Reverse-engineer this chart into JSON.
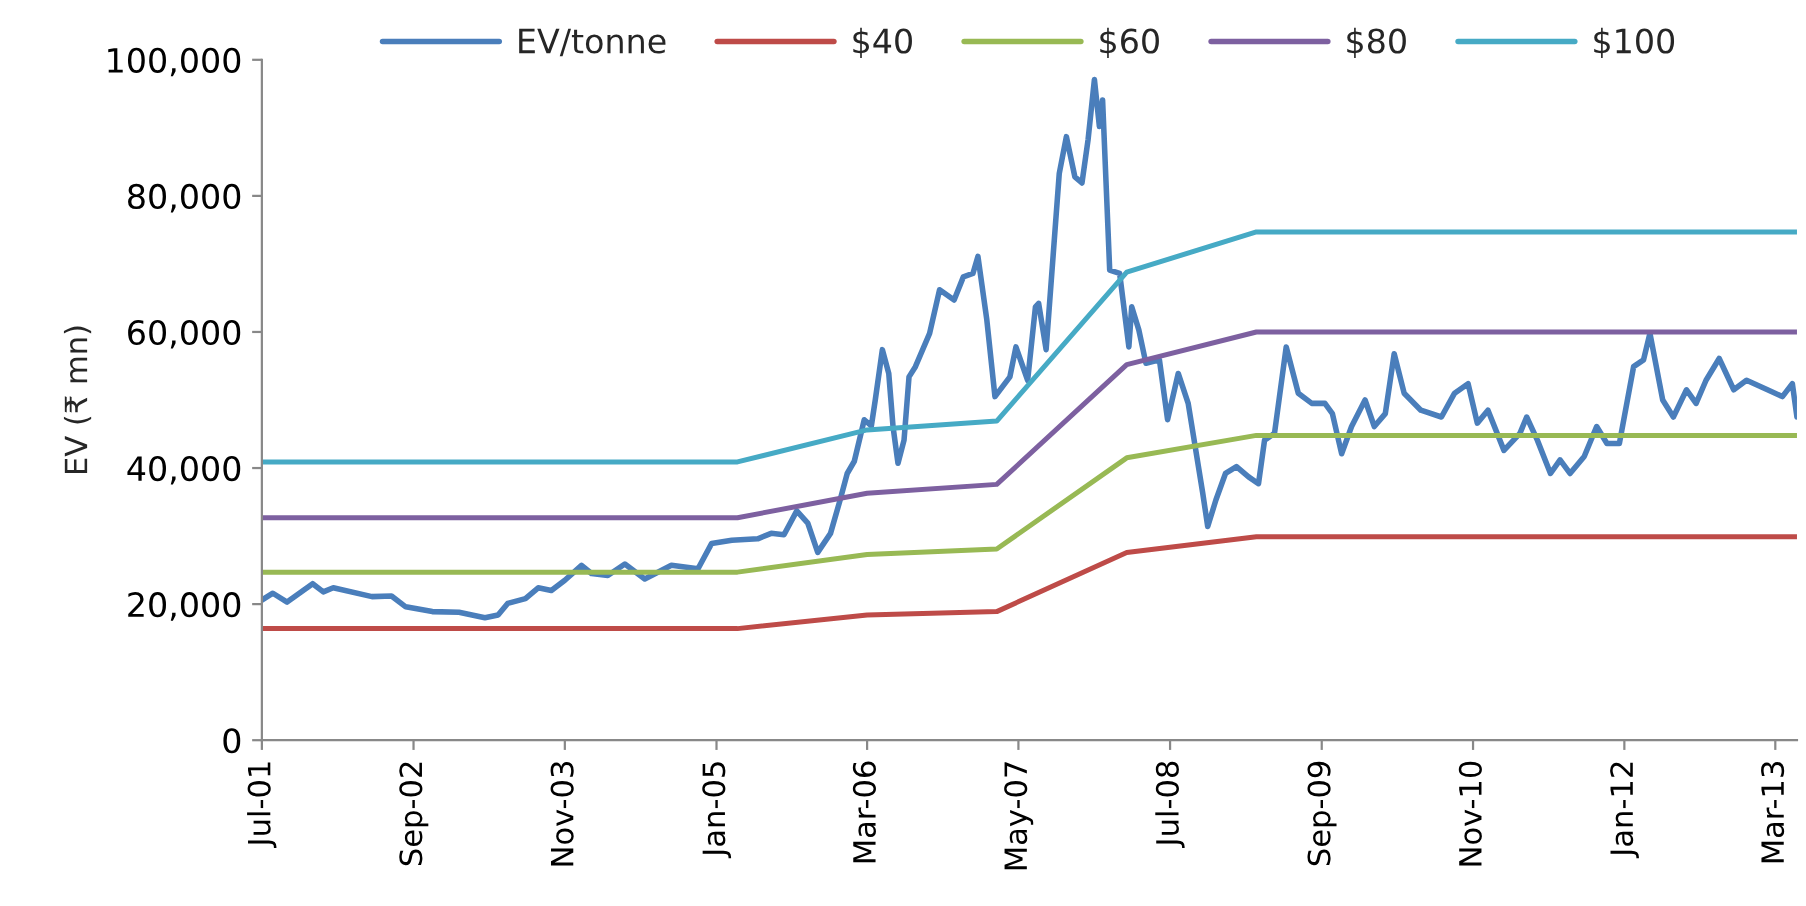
{
  "chart_data": {
    "type": "line",
    "ylabel": "EV (₹ mn)",
    "xlim": [
      "2001-07-01",
      "2013-05-01"
    ],
    "ylim": [
      0,
      100000
    ],
    "xticks": [
      {
        "value": "2001-07-01",
        "label": "Jul-01"
      },
      {
        "value": "2002-09-01",
        "label": "Sep-02"
      },
      {
        "value": "2003-11-01",
        "label": "Nov-03"
      },
      {
        "value": "2005-01-01",
        "label": "Jan-05"
      },
      {
        "value": "2006-03-01",
        "label": "Mar-06"
      },
      {
        "value": "2007-05-01",
        "label": "May-07"
      },
      {
        "value": "2008-07-01",
        "label": "Jul-08"
      },
      {
        "value": "2009-09-01",
        "label": "Sep-09"
      },
      {
        "value": "2010-11-01",
        "label": "Nov-10"
      },
      {
        "value": "2012-01-01",
        "label": "Jan-12"
      },
      {
        "value": "2013-03-01",
        "label": "Mar-13"
      }
    ],
    "yticks": [
      0,
      {
        "value": 20000,
        "label": "20,000"
      },
      {
        "value": 40000,
        "label": "40,000"
      },
      {
        "value": 60000,
        "label": "60,000"
      },
      {
        "value": 80000,
        "label": "80,000"
      },
      {
        "value": 100000,
        "label": "100,000"
      }
    ],
    "grid": false,
    "legend": "top",
    "marker": "none",
    "line_style": "solid",
    "series": [
      {
        "name": "EV/tonne",
        "color": "#4a7ebb",
        "x": [
          "2001-07-01",
          "2001-08-01",
          "2001-09-10",
          "2001-11-21",
          "2001-12-21",
          "2002-01-18",
          "2002-05-07",
          "2002-07-01",
          "2002-08-10",
          "2002-10-24",
          "2003-01-07",
          "2003-03-21",
          "2003-04-27",
          "2003-05-24",
          "2003-07-13",
          "2003-08-18",
          "2003-09-24",
          "2003-11-01",
          "2003-12-18",
          "2004-01-15",
          "2004-03-01",
          "2004-04-18",
          "2004-06-13",
          "2004-08-27",
          "2004-11-10",
          "2004-12-18",
          "2005-02-13",
          "2005-04-27",
          "2005-06-04",
          "2005-07-10",
          "2005-08-15",
          "2005-09-15",
          "2005-10-13",
          "2005-11-18",
          "2005-12-15",
          "2006-01-04",
          "2006-01-24",
          "2006-02-21",
          "2006-03-13",
          "2006-03-24",
          "2006-04-13",
          "2006-05-01",
          "2006-05-13",
          "2006-05-27",
          "2006-06-13",
          "2006-06-27",
          "2006-07-15",
          "2006-08-24",
          "2006-09-21",
          "2006-11-01",
          "2006-11-27",
          "2006-12-24",
          "2007-01-07",
          "2007-02-01",
          "2007-02-24",
          "2007-04-07",
          "2007-04-24",
          "2007-05-27",
          "2007-06-18",
          "2007-06-27",
          "2007-07-18",
          "2007-08-24",
          "2007-09-13",
          "2007-10-07",
          "2007-10-27",
          "2007-11-13",
          "2007-12-01",
          "2007-12-15",
          "2007-12-24",
          "2008-01-13",
          "2008-02-10",
          "2008-03-07",
          "2008-03-15",
          "2008-04-04",
          "2008-04-24",
          "2008-06-01",
          "2008-06-24",
          "2008-07-24",
          "2008-08-21",
          "2008-10-01",
          "2008-10-15",
          "2008-11-07",
          "2008-12-04",
          "2009-01-04",
          "2009-02-07",
          "2009-03-07",
          "2009-03-24",
          "2009-04-21",
          "2009-05-24",
          "2009-06-27",
          "2009-08-04",
          "2009-09-10",
          "2009-10-01",
          "2009-10-27",
          "2009-11-24",
          "2010-01-01",
          "2010-01-27",
          "2010-02-27",
          "2010-03-24",
          "2010-04-21",
          "2010-06-07",
          "2010-08-04",
          "2010-09-10",
          "2010-10-18",
          "2010-11-13",
          "2010-12-13",
          "2011-01-27",
          "2011-03-13",
          "2011-04-01",
          "2011-05-01",
          "2011-06-07",
          "2011-07-04",
          "2011-08-01",
          "2011-09-10",
          "2011-10-15",
          "2011-11-13",
          "2011-12-18",
          "2012-01-27",
          "2012-02-24",
          "2012-03-13",
          "2012-04-18",
          "2012-05-18",
          "2012-06-24",
          "2012-07-21",
          "2012-08-18",
          "2012-09-24",
          "2012-11-04",
          "2012-12-10",
          "2013-02-07",
          "2013-03-21",
          "2013-04-18",
          "2013-05-01"
        ],
        "values": [
          20600,
          21600,
          20300,
          23000,
          21800,
          22400,
          21100,
          21200,
          19600,
          18900,
          18800,
          18000,
          18400,
          20100,
          20800,
          22400,
          22000,
          23500,
          25700,
          24500,
          24200,
          25900,
          23700,
          25700,
          25200,
          28900,
          29400,
          29600,
          30400,
          30200,
          33700,
          31900,
          27600,
          30400,
          35300,
          39200,
          41000,
          47100,
          46200,
          50000,
          57400,
          53900,
          46100,
          40700,
          44100,
          53400,
          54900,
          59800,
          66200,
          64700,
          68100,
          68600,
          71100,
          61800,
          50500,
          53400,
          57800,
          52900,
          63700,
          64200,
          57400,
          83300,
          88700,
          82800,
          81900,
          88200,
          97100,
          90200,
          94100,
          69100,
          68600,
          57800,
          63700,
          60300,
          55400,
          55900,
          47100,
          53900,
          49500,
          36300,
          31400,
          35300,
          39200,
          40200,
          38700,
          37700,
          44100,
          45100,
          57800,
          51000,
          49500,
          49500,
          48000,
          42100,
          46100,
          50000,
          46100,
          48000,
          56800,
          51000,
          48500,
          47500,
          51000,
          52400,
          46600,
          48500,
          42600,
          45100,
          47500,
          44100,
          39200,
          41200,
          39200,
          41700,
          46100,
          43600,
          43600,
          54900,
          55900,
          59800,
          50000,
          47500,
          51500,
          49500,
          52900,
          56100,
          51500,
          52900,
          51500,
          50500,
          52400,
          47500
        ]
      },
      {
        "name": "$40",
        "color": "#be4b48",
        "x": [
          "2001-07-01",
          "2005-03-01",
          "2006-03-01",
          "2007-03-01",
          "2008-03-01",
          "2009-03-01",
          "2013-05-01"
        ],
        "values": [
          16400,
          16400,
          18400,
          18900,
          27600,
          29900,
          29900
        ]
      },
      {
        "name": "$60",
        "color": "#98b954",
        "x": [
          "2001-07-01",
          "2005-03-01",
          "2006-03-01",
          "2007-03-01",
          "2008-03-01",
          "2009-03-01",
          "2013-05-01"
        ],
        "values": [
          24700,
          24700,
          27300,
          28100,
          41500,
          44800,
          44800
        ]
      },
      {
        "name": "$80",
        "color": "#7d60a0",
        "x": [
          "2001-07-01",
          "2005-03-01",
          "2006-03-01",
          "2007-03-01",
          "2008-03-01",
          "2009-03-01",
          "2013-05-01"
        ],
        "values": [
          32700,
          32700,
          36300,
          37600,
          55200,
          60000,
          60000
        ]
      },
      {
        "name": "$100",
        "color": "#46aac5",
        "x": [
          "2001-07-01",
          "2005-03-01",
          "2006-03-01",
          "2007-03-01",
          "2008-03-01",
          "2009-03-01",
          "2013-05-01"
        ],
        "values": [
          40900,
          40900,
          45600,
          46900,
          68800,
          74700,
          74700
        ]
      }
    ]
  }
}
